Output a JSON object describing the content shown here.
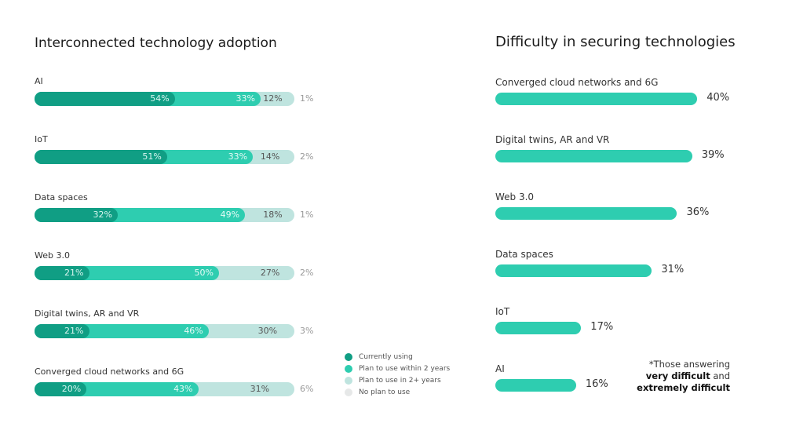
{
  "chart_data": [
    {
      "type": "bar",
      "orientation": "horizontal",
      "stacked": true,
      "title": "Interconnected technology adoption",
      "categories": [
        "AI",
        "IoT",
        "Data spaces",
        "Web 3.0",
        "Digital twins, AR and VR",
        "Converged cloud networks and 6G"
      ],
      "series": [
        {
          "name": "Currently using",
          "color": "#109e84",
          "values": [
            54,
            51,
            32,
            21,
            21,
            20
          ]
        },
        {
          "name": "Plan to use within 2 years",
          "color": "#2ecdb0",
          "values": [
            33,
            33,
            49,
            50,
            46,
            43
          ]
        },
        {
          "name": "Plan to use in 2+ years",
          "color": "#bfe4df",
          "values": [
            12,
            14,
            18,
            27,
            30,
            31
          ]
        },
        {
          "name": "No plan to use",
          "color": "#e6e8e8",
          "values": [
            1,
            2,
            1,
            2,
            3,
            6
          ]
        }
      ],
      "xlim": [
        0,
        100
      ]
    },
    {
      "type": "bar",
      "orientation": "horizontal",
      "title": "Difficulty in securing technologies",
      "categories": [
        "Converged cloud networks and 6G",
        "Digital twins, AR and VR",
        "Web 3.0",
        "Data spaces",
        "IoT",
        "AI"
      ],
      "values": [
        40,
        39,
        36,
        31,
        17,
        16
      ],
      "color": "#2ecdb0",
      "note": [
        "*Those answering",
        "very difficult",
        "and",
        "extremely difficult"
      ]
    }
  ]
}
